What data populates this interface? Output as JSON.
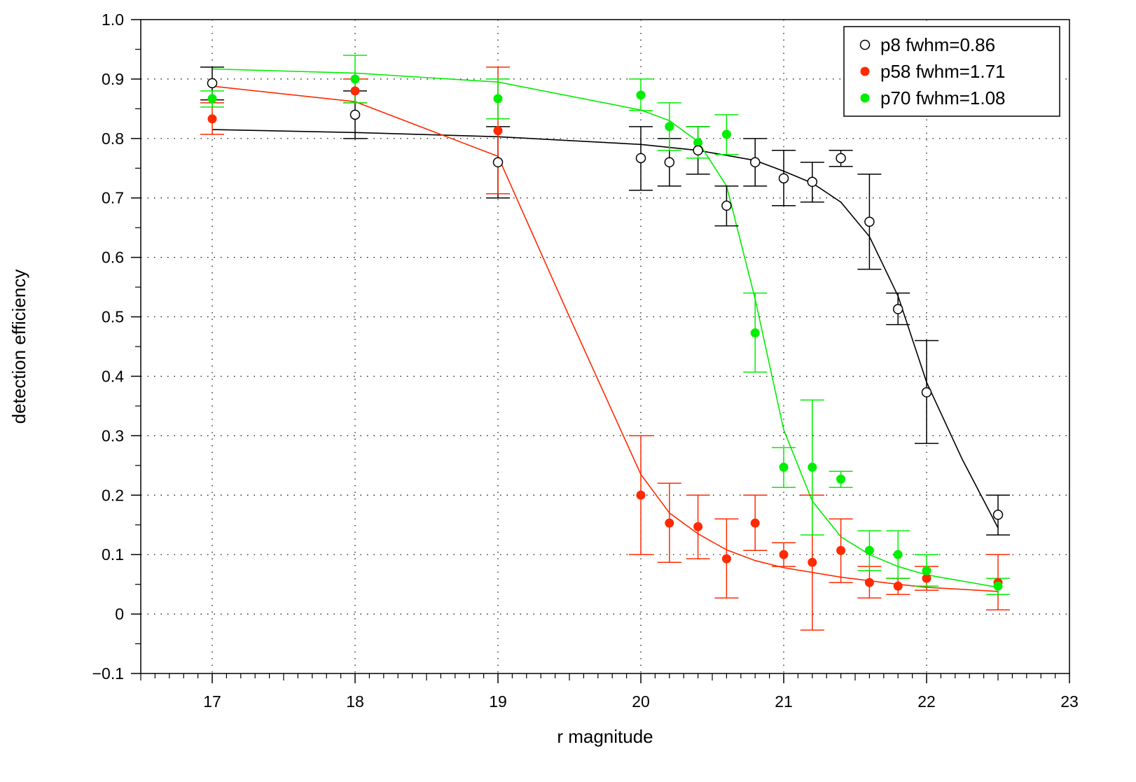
{
  "chart_data": {
    "type": "scatter",
    "title": "",
    "xlabel": "r magnitude",
    "ylabel": "detection efficiency",
    "xlim": [
      16.5,
      23
    ],
    "ylim": [
      -0.1,
      1.0
    ],
    "grid": true,
    "legend_position": "top-right",
    "x_ticks": [
      17,
      18,
      19,
      20,
      21,
      22,
      23
    ],
    "x_tick_labels": [
      "17",
      "18",
      "19",
      "20",
      "21",
      "22",
      "23"
    ],
    "y_ticks": [
      -0.1,
      0,
      0.1,
      0.2,
      0.3,
      0.4,
      0.5,
      0.6,
      0.7,
      0.8,
      0.9,
      1.0
    ],
    "y_tick_labels": [
      "−0.1",
      "0",
      "0.1",
      "0.2",
      "0.3",
      "0.4",
      "0.5",
      "0.6",
      "0.7",
      "0.8",
      "0.9",
      "1.0"
    ],
    "series": [
      {
        "name": "p8 fwhm=0.86",
        "color": "#000000",
        "marker": "open-circle",
        "points": [
          {
            "x": 17.0,
            "y": 0.893,
            "lo": 0.865,
            "hi": 0.92
          },
          {
            "x": 18.0,
            "y": 0.84,
            "lo": 0.8,
            "hi": 0.88
          },
          {
            "x": 19.0,
            "y": 0.76,
            "lo": 0.7,
            "hi": 0.82
          },
          {
            "x": 20.0,
            "y": 0.767,
            "lo": 0.713,
            "hi": 0.82
          },
          {
            "x": 20.2,
            "y": 0.76,
            "lo": 0.72,
            "hi": 0.8
          },
          {
            "x": 20.4,
            "y": 0.78,
            "lo": 0.74,
            "hi": 0.82
          },
          {
            "x": 20.6,
            "y": 0.687,
            "lo": 0.653,
            "hi": 0.72
          },
          {
            "x": 20.8,
            "y": 0.76,
            "lo": 0.72,
            "hi": 0.8
          },
          {
            "x": 21.0,
            "y": 0.733,
            "lo": 0.687,
            "hi": 0.78
          },
          {
            "x": 21.2,
            "y": 0.727,
            "lo": 0.693,
            "hi": 0.76
          },
          {
            "x": 21.4,
            "y": 0.767,
            "lo": 0.753,
            "hi": 0.78
          },
          {
            "x": 21.6,
            "y": 0.66,
            "lo": 0.58,
            "hi": 0.74
          },
          {
            "x": 21.8,
            "y": 0.513,
            "lo": 0.487,
            "hi": 0.54
          },
          {
            "x": 22.0,
            "y": 0.373,
            "lo": 0.287,
            "hi": 0.46
          },
          {
            "x": 22.5,
            "y": 0.167,
            "lo": 0.133,
            "hi": 0.2
          }
        ],
        "fit": [
          [
            17.0,
            0.815
          ],
          [
            18.0,
            0.81
          ],
          [
            19.0,
            0.803
          ],
          [
            20.0,
            0.79
          ],
          [
            20.4,
            0.78
          ],
          [
            20.8,
            0.763
          ],
          [
            21.0,
            0.745
          ],
          [
            21.2,
            0.725
          ],
          [
            21.4,
            0.693
          ],
          [
            21.6,
            0.635
          ],
          [
            21.8,
            0.535
          ],
          [
            22.0,
            0.39
          ],
          [
            22.25,
            0.26
          ],
          [
            22.5,
            0.145
          ]
        ]
      },
      {
        "name": "p58 fwhm=1.71",
        "color": "#ff2a00",
        "marker": "filled-circle",
        "points": [
          {
            "x": 17.0,
            "y": 0.833,
            "lo": 0.807,
            "hi": 0.86
          },
          {
            "x": 18.0,
            "y": 0.88,
            "lo": 0.86,
            "hi": 0.9
          },
          {
            "x": 19.0,
            "y": 0.813,
            "lo": 0.707,
            "hi": 0.92
          },
          {
            "x": 20.0,
            "y": 0.2,
            "lo": 0.1,
            "hi": 0.3
          },
          {
            "x": 20.2,
            "y": 0.153,
            "lo": 0.087,
            "hi": 0.22
          },
          {
            "x": 20.4,
            "y": 0.147,
            "lo": 0.093,
            "hi": 0.2
          },
          {
            "x": 20.6,
            "y": 0.093,
            "lo": 0.027,
            "hi": 0.16
          },
          {
            "x": 20.8,
            "y": 0.153,
            "lo": 0.107,
            "hi": 0.2
          },
          {
            "x": 21.0,
            "y": 0.1,
            "lo": 0.08,
            "hi": 0.12
          },
          {
            "x": 21.2,
            "y": 0.087,
            "lo": -0.027,
            "hi": 0.2
          },
          {
            "x": 21.4,
            "y": 0.107,
            "lo": 0.053,
            "hi": 0.16
          },
          {
            "x": 21.6,
            "y": 0.053,
            "lo": 0.027,
            "hi": 0.08
          },
          {
            "x": 21.8,
            "y": 0.047,
            "lo": 0.033,
            "hi": 0.06
          },
          {
            "x": 22.0,
            "y": 0.06,
            "lo": 0.04,
            "hi": 0.08
          },
          {
            "x": 22.5,
            "y": 0.053,
            "lo": 0.007,
            "hi": 0.1
          }
        ],
        "fit": [
          [
            17.0,
            0.888
          ],
          [
            18.0,
            0.862
          ],
          [
            19.0,
            0.77
          ],
          [
            19.5,
            0.5
          ],
          [
            20.0,
            0.235
          ],
          [
            20.2,
            0.17
          ],
          [
            20.4,
            0.135
          ],
          [
            20.6,
            0.108
          ],
          [
            20.8,
            0.09
          ],
          [
            21.0,
            0.078
          ],
          [
            21.4,
            0.062
          ],
          [
            21.8,
            0.05
          ],
          [
            22.0,
            0.045
          ],
          [
            22.5,
            0.038
          ]
        ]
      },
      {
        "name": "p70 fwhm=1.08",
        "color": "#00ee00",
        "marker": "filled-circle",
        "points": [
          {
            "x": 17.0,
            "y": 0.867,
            "lo": 0.853,
            "hi": 0.88
          },
          {
            "x": 18.0,
            "y": 0.9,
            "lo": 0.86,
            "hi": 0.94
          },
          {
            "x": 19.0,
            "y": 0.867,
            "lo": 0.833,
            "hi": 0.9
          },
          {
            "x": 20.0,
            "y": 0.873,
            "lo": 0.847,
            "hi": 0.9
          },
          {
            "x": 20.2,
            "y": 0.82,
            "lo": 0.78,
            "hi": 0.86
          },
          {
            "x": 20.4,
            "y": 0.793,
            "lo": 0.767,
            "hi": 0.82
          },
          {
            "x": 20.6,
            "y": 0.807,
            "lo": 0.773,
            "hi": 0.84
          },
          {
            "x": 20.8,
            "y": 0.473,
            "lo": 0.407,
            "hi": 0.54
          },
          {
            "x": 21.0,
            "y": 0.247,
            "lo": 0.213,
            "hi": 0.28
          },
          {
            "x": 21.2,
            "y": 0.247,
            "lo": 0.133,
            "hi": 0.36
          },
          {
            "x": 21.4,
            "y": 0.227,
            "lo": 0.213,
            "hi": 0.24
          },
          {
            "x": 21.6,
            "y": 0.107,
            "lo": 0.073,
            "hi": 0.14
          },
          {
            "x": 21.8,
            "y": 0.1,
            "lo": 0.06,
            "hi": 0.14
          },
          {
            "x": 22.0,
            "y": 0.073,
            "lo": 0.047,
            "hi": 0.1
          },
          {
            "x": 22.5,
            "y": 0.047,
            "lo": 0.033,
            "hi": 0.06
          }
        ],
        "fit": [
          [
            17.0,
            0.917
          ],
          [
            18.0,
            0.91
          ],
          [
            19.0,
            0.895
          ],
          [
            20.0,
            0.848
          ],
          [
            20.2,
            0.83
          ],
          [
            20.4,
            0.795
          ],
          [
            20.6,
            0.72
          ],
          [
            20.8,
            0.53
          ],
          [
            21.0,
            0.31
          ],
          [
            21.2,
            0.19
          ],
          [
            21.4,
            0.13
          ],
          [
            21.6,
            0.1
          ],
          [
            21.8,
            0.08
          ],
          [
            22.0,
            0.066
          ],
          [
            22.5,
            0.045
          ]
        ]
      }
    ]
  }
}
